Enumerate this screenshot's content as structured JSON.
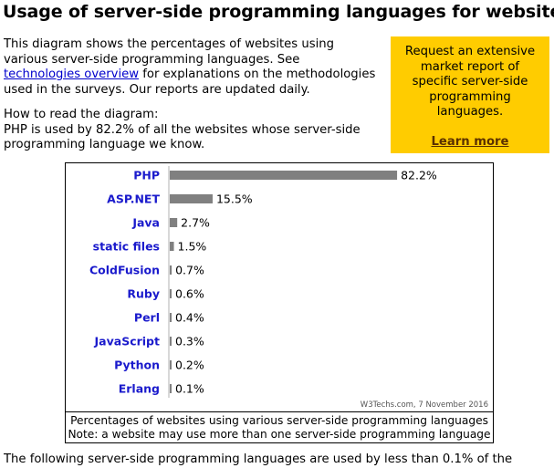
{
  "page": {
    "title": "Usage of server-side programming languages for websites",
    "intro_1": "This diagram shows the percentages of websites using various server-side programming languages. See ",
    "intro_link": "technologies overview",
    "intro_2": " for explanations on the methodologies used in the surveys. Our reports are updated daily.",
    "howto_heading": "How to read the diagram:",
    "howto_text": "PHP is used by 82.2% of all the websites whose server-side programming language we know.",
    "footer_partial": "The following server-side programming languages are used by less than 0.1% of the"
  },
  "promo": {
    "text": "Request an extensive market report of specific server-side programming languages.",
    "link": "Learn more"
  },
  "chart_data": {
    "type": "bar",
    "orientation": "horizontal",
    "categories": [
      "PHP",
      "ASP.NET",
      "Java",
      "static files",
      "ColdFusion",
      "Ruby",
      "Perl",
      "JavaScript",
      "Python",
      "Erlang"
    ],
    "values": [
      82.2,
      15.5,
      2.7,
      1.5,
      0.7,
      0.6,
      0.4,
      0.3,
      0.2,
      0.1
    ],
    "value_labels": [
      "82.2%",
      "15.5%",
      "2.7%",
      "1.5%",
      "0.7%",
      "0.6%",
      "0.4%",
      "0.3%",
      "0.2%",
      "0.1%"
    ],
    "credit": "W3Techs.com, 7 November 2016",
    "caption_line1": "Percentages of websites using various server-side programming languages",
    "caption_line2": "Note: a website may use more than one server-side programming language",
    "bar_color": "#808080",
    "label_color": "#1a1acc"
  }
}
